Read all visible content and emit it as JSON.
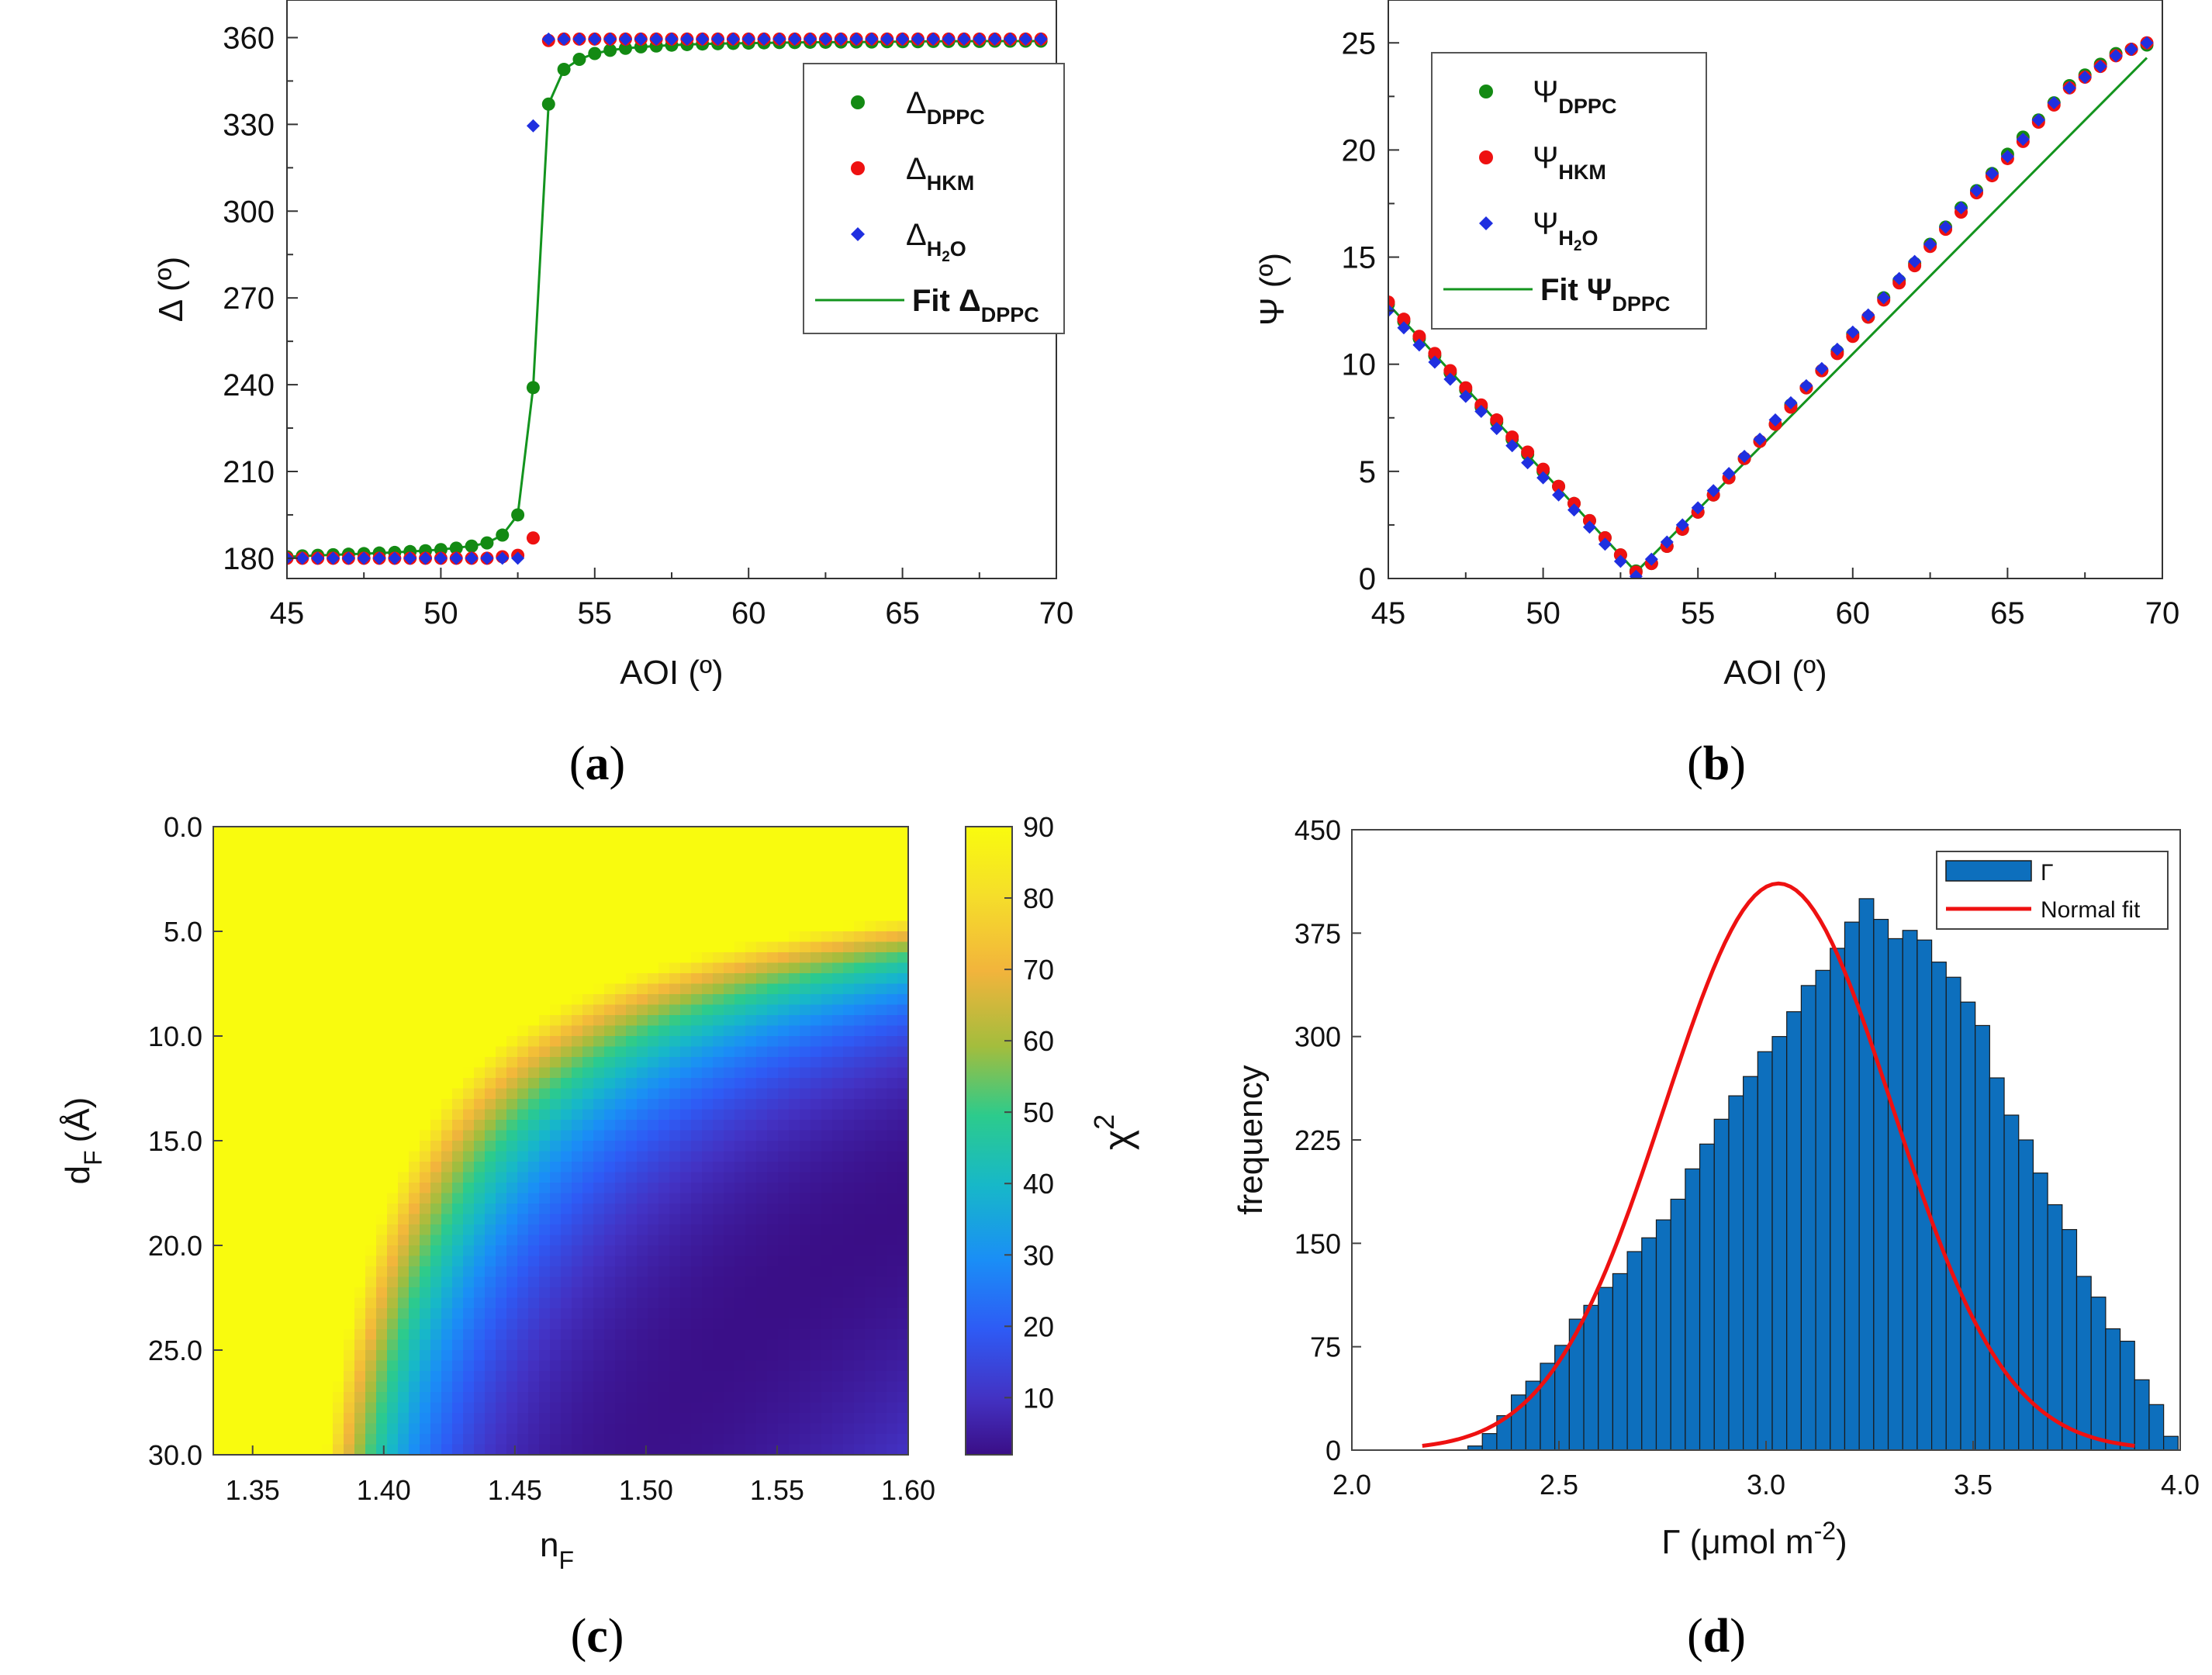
{
  "chart_data": [
    {
      "panel": "(a)",
      "type": "scatter",
      "xlabel": "AOI (º)",
      "ylabel": "Δ (º)",
      "xlim": [
        45,
        70
      ],
      "ylim": [
        173,
        373
      ],
      "xticks": [
        45,
        50,
        55,
        60,
        65,
        70
      ],
      "yticks": [
        180,
        210,
        240,
        270,
        300,
        330,
        360
      ],
      "xtick_labels": [
        "45",
        "50",
        "55",
        "60",
        "65",
        "70"
      ],
      "ytick_labels": [
        "180",
        "210",
        "240",
        "270",
        "300",
        "330",
        "360"
      ],
      "legend_position": "top-right",
      "series": [
        {
          "name": "Δ",
          "sub": "DPPC",
          "marker": "circle",
          "color": "#138a13",
          "x": [
            45.0,
            45.5,
            46.0,
            46.5,
            47.0,
            47.5,
            48.0,
            48.5,
            49.0,
            49.5,
            50.0,
            50.5,
            51.0,
            51.5,
            52.0,
            52.5,
            53.0,
            53.5,
            54.0,
            54.5,
            55.0,
            55.5,
            56.0,
            56.5,
            57.0,
            57.5,
            58.0,
            58.5,
            59.0,
            59.5,
            60.0,
            60.5,
            61.0,
            61.5,
            62.0,
            62.5,
            63.0,
            63.5,
            64.0,
            64.5,
            65.0,
            65.5,
            66.0,
            66.5,
            67.0,
            67.5,
            68.0,
            68.5,
            69.0,
            69.5
          ],
          "y": [
            180.5,
            180.8,
            181.0,
            181.2,
            181.4,
            181.6,
            181.8,
            182.0,
            182.3,
            182.6,
            183.0,
            183.5,
            184.2,
            185.3,
            188.0,
            195.0,
            239.0,
            337.0,
            349.0,
            352.5,
            354.5,
            355.6,
            356.3,
            356.8,
            357.1,
            357.4,
            357.6,
            357.8,
            357.9,
            358.0,
            358.1,
            358.2,
            358.3,
            358.3,
            358.4,
            358.4,
            358.5,
            358.5,
            358.5,
            358.6,
            358.6,
            358.6,
            358.7,
            358.7,
            358.7,
            358.7,
            358.8,
            358.8,
            358.8,
            358.8
          ]
        },
        {
          "name": "Δ",
          "sub": "HKM",
          "marker": "circle",
          "color": "#ee1111",
          "x": [
            45.0,
            45.5,
            46.0,
            46.5,
            47.0,
            47.5,
            48.0,
            48.5,
            49.0,
            49.5,
            50.0,
            50.5,
            51.0,
            51.5,
            52.0,
            52.5,
            53.0,
            53.5,
            54.0,
            54.5,
            55.0,
            55.5,
            56.0,
            56.5,
            57.0,
            57.5,
            58.0,
            58.5,
            59.0,
            59.5,
            60.0,
            60.5,
            61.0,
            61.5,
            62.0,
            62.5,
            63.0,
            63.5,
            64.0,
            64.5,
            65.0,
            65.5,
            66.0,
            66.5,
            67.0,
            67.5,
            68.0,
            68.5,
            69.0,
            69.5
          ],
          "y": [
            180,
            180,
            180,
            180,
            180,
            180,
            180,
            180,
            180,
            180,
            180,
            180,
            180,
            180,
            180.5,
            181,
            187,
            359,
            359.5,
            359.5,
            359.5,
            359.5,
            359.5,
            359.5,
            359.5,
            359.5,
            359.5,
            359.5,
            359.5,
            359.5,
            359.5,
            359.5,
            359.5,
            359.5,
            359.5,
            359.5,
            359.5,
            359.5,
            359.5,
            359.5,
            359.5,
            359.5,
            359.5,
            359.5,
            359.5,
            359.5,
            359.5,
            359.5,
            359.5,
            359.5
          ]
        },
        {
          "name": "Δ",
          "sub": "H",
          "sub2": "2",
          "sub3": "O",
          "marker": "diamond",
          "color": "#1f2fe0",
          "x": [
            45.0,
            45.5,
            46.0,
            46.5,
            47.0,
            47.5,
            48.0,
            48.5,
            49.0,
            49.5,
            50.0,
            50.5,
            51.0,
            51.5,
            52.0,
            52.5,
            53.0,
            53.5,
            54.0,
            54.5,
            55.0,
            55.5,
            56.0,
            56.5,
            57.0,
            57.5,
            58.0,
            58.5,
            59.0,
            59.5,
            60.0,
            60.5,
            61.0,
            61.5,
            62.0,
            62.5,
            63.0,
            63.5,
            64.0,
            64.5,
            65.0,
            65.5,
            66.0,
            66.5,
            67.0,
            67.5,
            68.0,
            68.5,
            69.0,
            69.5
          ],
          "y": [
            180,
            180,
            180,
            180,
            180,
            180,
            180,
            180,
            180,
            180,
            180,
            180,
            180,
            180,
            180,
            180,
            329.5,
            359.5,
            359.5,
            359.5,
            359.5,
            359.5,
            359.5,
            359.5,
            359.5,
            359.5,
            359.5,
            359.5,
            359.5,
            359.5,
            359.5,
            359.5,
            359.5,
            359.5,
            359.5,
            359.5,
            359.5,
            359.5,
            359.5,
            359.5,
            359.5,
            359.5,
            359.5,
            359.5,
            359.5,
            359.5,
            359.5,
            359.5,
            359.5,
            359.5
          ]
        },
        {
          "name": "Fit Δ",
          "sub": "DPPC",
          "marker": "line",
          "color": "#13941e",
          "x": [
            45.0,
            46.0,
            47.0,
            48.0,
            49.0,
            50.0,
            51.0,
            51.5,
            52.0,
            52.5,
            53.0,
            53.5,
            54.0,
            54.5,
            55.0,
            55.5,
            56.0,
            57.0,
            58.0,
            59.0,
            60.0,
            62.0,
            64.0,
            66.0,
            68.0,
            69.5
          ],
          "y": [
            180.5,
            181.0,
            181.4,
            181.8,
            182.3,
            183.0,
            184.2,
            185.3,
            188.0,
            195.0,
            239.0,
            337.0,
            349.0,
            352.5,
            354.5,
            355.6,
            356.3,
            357.1,
            357.6,
            357.9,
            358.1,
            358.4,
            358.5,
            358.7,
            358.8,
            358.8
          ]
        }
      ]
    },
    {
      "panel": "(b)",
      "type": "scatter",
      "xlabel": "AOI (º)",
      "ylabel": "Ψ (º)",
      "xlim": [
        45,
        70
      ],
      "ylim": [
        0,
        27
      ],
      "xticks": [
        45,
        50,
        55,
        60,
        65,
        70
      ],
      "yticks": [
        0,
        5,
        10,
        15,
        20,
        25
      ],
      "xtick_labels": [
        "45",
        "50",
        "55",
        "60",
        "65",
        "70"
      ],
      "ytick_labels": [
        "0",
        "5",
        "10",
        "15",
        "20",
        "25"
      ],
      "legend_position": "top-left",
      "series": [
        {
          "name": "Ψ",
          "sub": "DPPC",
          "marker": "circle",
          "color": "#138a13",
          "x": [
            45.0,
            45.5,
            46.0,
            46.5,
            47.0,
            47.5,
            48.0,
            48.5,
            49.0,
            49.5,
            50.0,
            50.5,
            51.0,
            51.5,
            52.0,
            52.5,
            53.0,
            53.5,
            54.0,
            54.5,
            55.0,
            55.5,
            56.0,
            56.5,
            57.0,
            57.5,
            58.0,
            58.5,
            59.0,
            59.5,
            60.0,
            60.5,
            61.0,
            61.5,
            62.0,
            62.5,
            63.0,
            63.5,
            64.0,
            64.5,
            65.0,
            65.5,
            66.0,
            66.5,
            67.0,
            67.5,
            68.0,
            68.5,
            69.0,
            69.5
          ],
          "y": [
            12.8,
            12.0,
            11.2,
            10.4,
            9.6,
            8.8,
            8.0,
            7.3,
            6.5,
            5.8,
            5.0,
            4.3,
            3.5,
            2.7,
            1.9,
            1.1,
            0.35,
            0.7,
            1.5,
            2.3,
            3.1,
            3.9,
            4.7,
            5.6,
            6.4,
            7.2,
            8.1,
            8.9,
            9.7,
            10.6,
            11.4,
            12.2,
            13.1,
            13.9,
            14.7,
            15.6,
            16.4,
            17.3,
            18.1,
            18.9,
            19.8,
            20.6,
            21.4,
            22.2,
            23.0,
            23.5,
            24.0,
            24.5,
            24.7,
            24.9
          ]
        },
        {
          "name": "Ψ",
          "sub": "HKM",
          "marker": "circle",
          "color": "#ee1111",
          "x": [
            45.0,
            45.5,
            46.0,
            46.5,
            47.0,
            47.5,
            48.0,
            48.5,
            49.0,
            49.5,
            50.0,
            50.5,
            51.0,
            51.5,
            52.0,
            52.5,
            53.0,
            53.5,
            54.0,
            54.5,
            55.0,
            55.5,
            56.0,
            56.5,
            57.0,
            57.5,
            58.0,
            58.5,
            59.0,
            59.5,
            60.0,
            60.5,
            61.0,
            61.5,
            62.0,
            62.5,
            63.0,
            63.5,
            64.0,
            64.5,
            65.0,
            65.5,
            66.0,
            66.5,
            67.0,
            67.5,
            68.0,
            68.5,
            69.0,
            69.5
          ],
          "y": [
            12.9,
            12.1,
            11.3,
            10.5,
            9.7,
            8.9,
            8.1,
            7.4,
            6.6,
            5.9,
            5.1,
            4.3,
            3.5,
            2.7,
            1.9,
            1.1,
            0.3,
            0.7,
            1.5,
            2.3,
            3.1,
            3.9,
            4.7,
            5.6,
            6.4,
            7.2,
            8.0,
            8.9,
            9.7,
            10.5,
            11.3,
            12.2,
            13.0,
            13.8,
            14.6,
            15.5,
            16.3,
            17.1,
            18.0,
            18.8,
            19.6,
            20.4,
            21.3,
            22.1,
            22.9,
            23.4,
            23.9,
            24.4,
            24.7,
            25.0
          ]
        },
        {
          "name": "Ψ",
          "sub": "H",
          "sub2": "2",
          "sub3": "O",
          "marker": "diamond",
          "color": "#1f2fe0",
          "x": [
            45.0,
            45.5,
            46.0,
            46.5,
            47.0,
            47.5,
            48.0,
            48.5,
            49.0,
            49.5,
            50.0,
            50.5,
            51.0,
            51.5,
            52.0,
            52.5,
            53.0,
            53.5,
            54.0,
            54.5,
            55.0,
            55.5,
            56.0,
            56.5,
            57.0,
            57.5,
            58.0,
            58.5,
            59.0,
            59.5,
            60.0,
            60.5,
            61.0,
            61.5,
            62.0,
            62.5,
            63.0,
            63.5,
            64.0,
            64.5,
            65.0,
            65.5,
            66.0,
            66.5,
            67.0,
            67.5,
            68.0,
            68.5,
            69.0,
            69.5
          ],
          "y": [
            12.5,
            11.7,
            10.9,
            10.1,
            9.3,
            8.5,
            7.8,
            7.0,
            6.2,
            5.4,
            4.7,
            3.9,
            3.2,
            2.4,
            1.6,
            0.8,
            0.1,
            0.9,
            1.7,
            2.5,
            3.3,
            4.1,
            4.9,
            5.7,
            6.5,
            7.4,
            8.2,
            9.0,
            9.8,
            10.7,
            11.5,
            12.3,
            13.1,
            14.0,
            14.8,
            15.6,
            16.4,
            17.3,
            18.1,
            18.9,
            19.7,
            20.5,
            21.4,
            22.2,
            22.9,
            23.4,
            23.9,
            24.4,
            24.7,
            25.0
          ]
        },
        {
          "name": "Fit Ψ",
          "sub": "DPPC",
          "marker": "line",
          "color": "#13941e",
          "x": [
            45.0,
            53.0,
            69.5
          ],
          "y": [
            12.8,
            0.3,
            24.3
          ]
        }
      ]
    },
    {
      "panel": "(c)",
      "type": "heatmap",
      "xlabel": "n",
      "xlabel_sub": "F",
      "ylabel": "d",
      "ylabel_sub": "F",
      "ylabel_unit": "(Å)",
      "colorbar_label": "χ",
      "colorbar_sup": "2",
      "xlim": [
        1.335,
        1.6
      ],
      "ylim": [
        0,
        30
      ],
      "clim": [
        2,
        90
      ],
      "xticks": [
        1.35,
        1.4,
        1.45,
        1.5,
        1.55,
        1.6
      ],
      "xtick_labels": [
        "1.35",
        "1.40",
        "1.45",
        "1.50",
        "1.55",
        "1.60"
      ],
      "yticks": [
        0,
        5,
        10,
        15,
        20,
        25,
        30
      ],
      "ytick_labels": [
        "0.0",
        "5.0",
        "10.0",
        "15.0",
        "20.0",
        "25.0",
        "30.0"
      ],
      "cticks": [
        10,
        20,
        30,
        40,
        50,
        60,
        70,
        80,
        90
      ],
      "ctick_labels": [
        "10",
        "20",
        "30",
        "40",
        "50",
        "60",
        "70",
        "80",
        "90"
      ],
      "colormap": [
        "#3a0e86",
        "#4332c3",
        "#2e5bf5",
        "#1a8ef6",
        "#17b8c8",
        "#2ccb8c",
        "#a3bd3d",
        "#f2b43c",
        "#f5de2a",
        "#f9fb0e"
      ]
    },
    {
      "panel": "(d)",
      "type": "bar",
      "xlabel": "Γ (μmol m",
      "xlabel_sup": "-2",
      "xlabel_end": ")",
      "ylabel": "frequency",
      "xlim": [
        2.0,
        4.0
      ],
      "ylim": [
        0,
        450
      ],
      "xticks": [
        2.0,
        2.5,
        3.0,
        3.5,
        4.0
      ],
      "xtick_labels": [
        "2.0",
        "2.5",
        "3.0",
        "3.5",
        "4.0"
      ],
      "yticks": [
        0,
        75,
        150,
        225,
        300,
        375,
        450
      ],
      "ytick_labels": [
        "0",
        "75",
        "150",
        "225",
        "300",
        "375",
        "450"
      ],
      "legend_position": "top-right",
      "bins": {
        "edges_start": 2.28,
        "bin_width": 0.035,
        "values": [
          3,
          12,
          25,
          40,
          50,
          63,
          76,
          95,
          105,
          118,
          128,
          144,
          154,
          167,
          182,
          204,
          222,
          240,
          257,
          271,
          289,
          300,
          318,
          337,
          348,
          364,
          383,
          400,
          385,
          371,
          377,
          370,
          354,
          343,
          325,
          308,
          270,
          243,
          225,
          201,
          178,
          160,
          126,
          111,
          88,
          79,
          51,
          33,
          10
        ]
      },
      "series": [
        {
          "name": "Γ",
          "color": "#0d6fbd",
          "marker": "bar"
        },
        {
          "name": "Normal fit",
          "color": "#ee1111",
          "marker": "line",
          "mean": 3.03,
          "sd": 0.275,
          "peak": 411,
          "x_range": [
            2.17,
            3.89
          ]
        }
      ]
    }
  ]
}
